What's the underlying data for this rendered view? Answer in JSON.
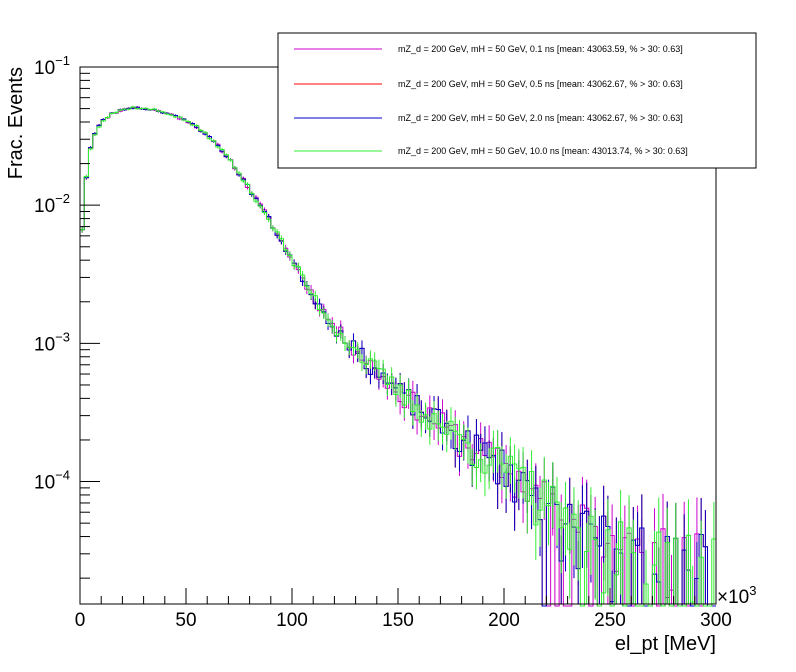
{
  "chart_data": {
    "type": "line",
    "title": "",
    "xlabel": "el_pt [MeV]",
    "ylabel": "Frac. Events",
    "x_multiplier_label": "×10",
    "x_multiplier_exponent": "3",
    "xlim": [
      0,
      300
    ],
    "ylim": [
      1.3e-05,
      0.1
    ],
    "y_scale": "log",
    "x_ticks": [
      0,
      50,
      100,
      150,
      200,
      250,
      300
    ],
    "x_tick_labels": [
      "0",
      "50",
      "100",
      "150",
      "200",
      "250",
      "300"
    ],
    "y_ticks": [
      0.0001,
      0.001,
      0.01,
      0.1
    ],
    "y_tick_labels": [
      {
        "base": "10",
        "exp": "−4"
      },
      {
        "base": "10",
        "exp": "−3"
      },
      {
        "base": "10",
        "exp": "−2"
      },
      {
        "base": "10",
        "exp": "−1"
      }
    ],
    "legend_position": "top-right",
    "series": [
      {
        "name": "mZ_d = 200 GeV, mH = 50 GeV, 0.1 ns [mean: 43063.59, % > 30: 0.63]",
        "color": "#cc00cc",
        "seed": 11
      },
      {
        "name": "mZ_d = 200 GeV, mH = 50 GeV, 0.5 ns [mean: 43062.67, % > 30: 0.63]",
        "color": "#ff0000",
        "seed": 23
      },
      {
        "name": "mZ_d = 200 GeV, mH = 50 GeV, 2.0 ns [mean: 43062.67, % > 30: 0.63]",
        "color": "#0000cc",
        "seed": 23
      },
      {
        "name": "mZ_d = 200 GeV, mH = 50 GeV, 10.0 ns [mean: 43013.74, % > 30: 0.63]",
        "color": "#33ee33",
        "seed": 37
      }
    ],
    "curve_points": [
      [
        0,
        0.0062
      ],
      [
        2,
        0.0075
      ],
      [
        3,
        0.016
      ],
      [
        5,
        0.026
      ],
      [
        7,
        0.033
      ],
      [
        10,
        0.04
      ],
      [
        15,
        0.046
      ],
      [
        20,
        0.049
      ],
      [
        25,
        0.051
      ],
      [
        30,
        0.05
      ],
      [
        35,
        0.049
      ],
      [
        40,
        0.047
      ],
      [
        45,
        0.044
      ],
      [
        50,
        0.041
      ],
      [
        55,
        0.037
      ],
      [
        60,
        0.032
      ],
      [
        65,
        0.027
      ],
      [
        70,
        0.022
      ],
      [
        75,
        0.017
      ],
      [
        80,
        0.013
      ],
      [
        85,
        0.01
      ],
      [
        90,
        0.0075
      ],
      [
        95,
        0.0055
      ],
      [
        100,
        0.004
      ],
      [
        105,
        0.003
      ],
      [
        110,
        0.0022
      ],
      [
        115,
        0.0017
      ],
      [
        120,
        0.0013
      ],
      [
        125,
        0.0011
      ],
      [
        130,
        0.0009
      ],
      [
        135,
        0.00075
      ],
      [
        140,
        0.00063
      ],
      [
        145,
        0.00053
      ],
      [
        150,
        0.00045
      ],
      [
        155,
        0.00039
      ],
      [
        160,
        0.00034
      ],
      [
        165,
        0.0003
      ],
      [
        170,
        0.00026
      ],
      [
        175,
        0.00023
      ],
      [
        180,
        0.0002
      ],
      [
        185,
        0.00018
      ],
      [
        190,
        0.00016
      ],
      [
        195,
        0.00014
      ],
      [
        200,
        0.00013
      ],
      [
        205,
        0.00011
      ],
      [
        210,
        9.5e-05
      ],
      [
        215,
        8.2e-05
      ],
      [
        220,
        7e-05
      ],
      [
        225,
        6e-05
      ],
      [
        230,
        5.2e-05
      ],
      [
        240,
        4.2e-05
      ],
      [
        250,
        3.5e-05
      ],
      [
        260,
        3e-05
      ],
      [
        270,
        2.7e-05
      ],
      [
        280,
        2.5e-05
      ],
      [
        290,
        2.3e-05
      ],
      [
        300,
        2.2e-05
      ]
    ],
    "bin_width": 2,
    "grid": false
  }
}
